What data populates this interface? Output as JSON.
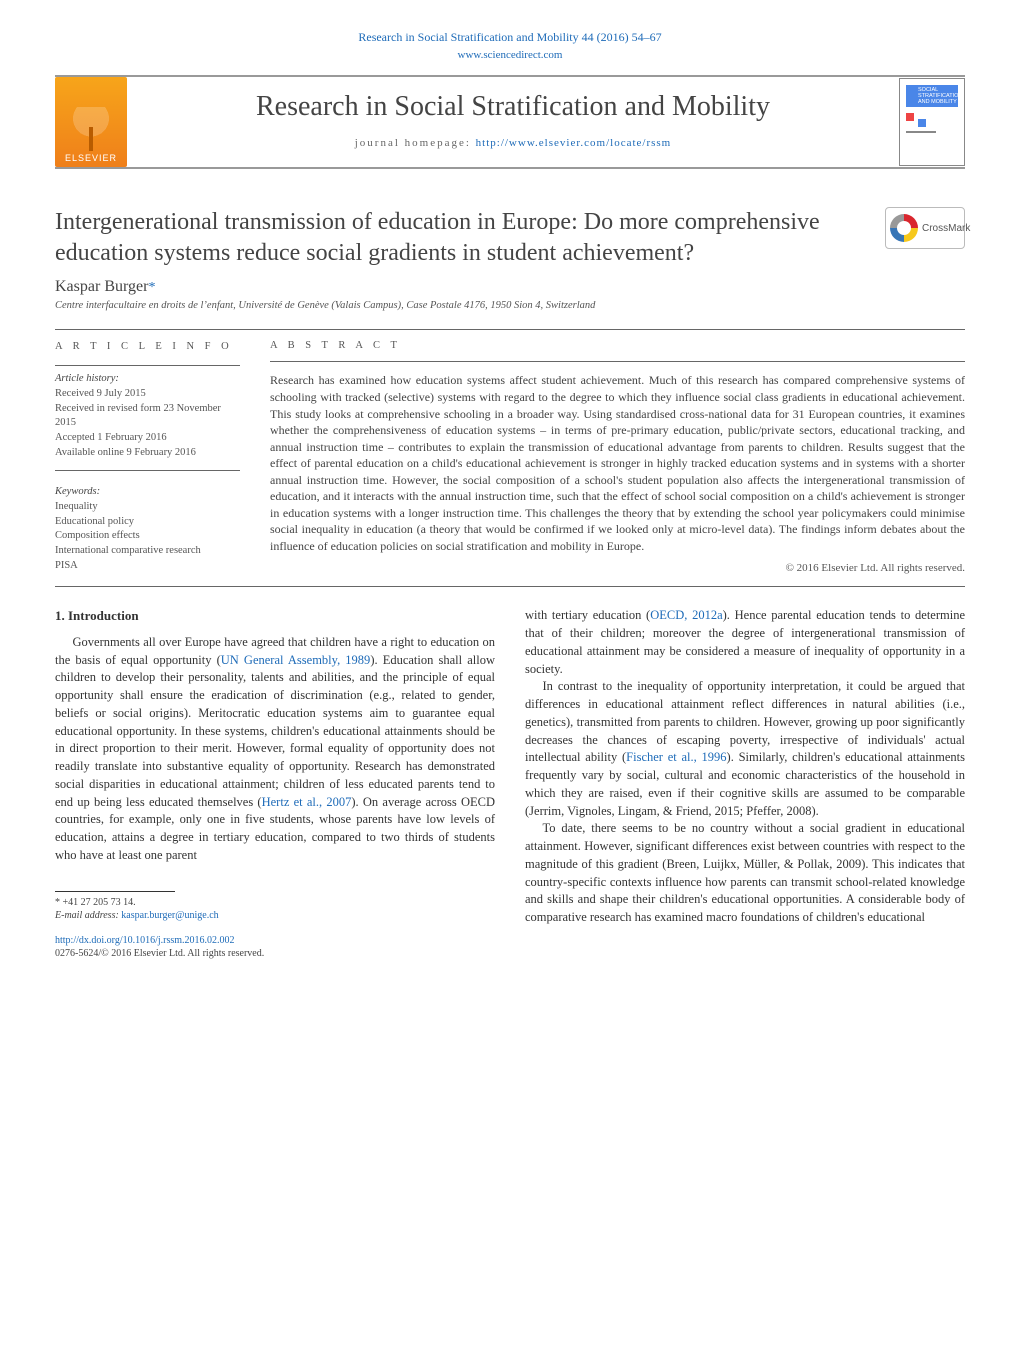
{
  "header": {
    "journal_ref_line": "Research in Social Stratification and Mobility 44 (2016) 54–67",
    "sciencedirect": "www.sciencedirect.com",
    "journal_title": "Research in Social Stratification and Mobility",
    "homepage_label": "journal homepage: ",
    "homepage_url": "http://www.elsevier.com/locate/rssm",
    "elsevier_label": "ELSEVIER",
    "cover_text": "SOCIAL\nSTRATIFICATION\nAND MOBILITY",
    "crossmark_label": "CrossMark"
  },
  "article": {
    "title": "Intergenerational transmission of education in Europe: Do more comprehensive education systems reduce social gradients in student achievement?",
    "author": "Kaspar Burger",
    "author_marker": "*",
    "affiliation": "Centre interfacultaire en droits de l’enfant, Université de Genève (Valais Campus), Case Postale 4176, 1950 Sion 4, Switzerland"
  },
  "article_info": {
    "heading": "A R T I C L E   I N F O",
    "history_label": "Article history:",
    "received": "Received 9 July 2015",
    "received_revised": "Received in revised form 23 November 2015",
    "accepted": "Accepted 1 February 2016",
    "online": "Available online 9 February 2016",
    "keywords_label": "Keywords:",
    "keywords": [
      "Inequality",
      "Educational policy",
      "Composition effects",
      "International comparative research",
      "PISA"
    ]
  },
  "abstract": {
    "heading": "A B S T R A C T",
    "text": "Research has examined how education systems affect student achievement. Much of this research has compared comprehensive systems of schooling with tracked (selective) systems with regard to the degree to which they influence social class gradients in educational achievement. This study looks at comprehensive schooling in a broader way. Using standardised cross-national data for 31 European countries, it examines whether the comprehensiveness of education systems – in terms of pre-primary education, public/private sectors, educational tracking, and annual instruction time – contributes to explain the transmission of educational advantage from parents to children. Results suggest that the effect of parental education on a child's educational achievement is stronger in highly tracked education systems and in systems with a shorter annual instruction time. However, the social composition of a school's student population also affects the intergenerational transmission of education, and it interacts with the annual instruction time, such that the effect of school social composition on a child's achievement is stronger in education systems with a longer instruction time. This challenges the theory that by extending the school year policymakers could minimise social inequality in education (a theory that would be confirmed if we looked only at micro-level data). The findings inform debates about the influence of education policies on social stratification and mobility in Europe.",
    "copyright": "© 2016 Elsevier Ltd. All rights reserved."
  },
  "body": {
    "section_number": "1.",
    "section_title": "Introduction",
    "col1_p1": "Governments all over Europe have agreed that children have a right to education on the basis of equal opportunity (UN General Assembly, 1989). Education shall allow children to develop their personality, talents and abilities, and the principle of equal opportunity shall ensure the eradication of discrimination (e.g., related to gender, beliefs or social origins). Meritocratic education systems aim to guarantee equal educational opportunity. In these systems, children's educational attainments should be in direct proportion to their merit. However, formal equality of opportunity does not readily translate into substantive equality of opportunity. Research has demonstrated social disparities in educational attainment; children of less educated parents tend to end up being less educated themselves (Hertz et al., 2007). On average across OECD countries, for example, only one in five students, whose parents have low levels of education, attains a degree in tertiary education, compared to two thirds of students who have at least one parent",
    "col2_p1": "with tertiary education (OECD, 2012a). Hence parental education tends to determine that of their children; moreover the degree of intergenerational transmission of educational attainment may be considered a measure of inequality of opportunity in a society.",
    "col2_p2": "In contrast to the inequality of opportunity interpretation, it could be argued that differences in educational attainment reflect differences in natural abilities (i.e., genetics), transmitted from parents to children. However, growing up poor significantly decreases the chances of escaping poverty, irrespective of individuals' actual intellectual ability (Fischer et al., 1996). Similarly, children's educational attainments frequently vary by social, cultural and economic characteristics of the household in which they are raised, even if their cognitive skills are assumed to be comparable (Jerrim, Vignoles, Lingam, & Friend, 2015; Pfeffer, 2008).",
    "col2_p3": "To date, there seems to be no country without a social gradient in educational attainment. However, significant differences exist between countries with respect to the magnitude of this gradient (Breen, Luijkx, Müller, & Pollak, 2009). This indicates that country-specific contexts influence how parents can transmit school-related knowledge and skills and shape their children's educational opportunities. A considerable body of comparative research has examined macro foundations of children's educational",
    "citations": {
      "un": "UN General Assembly, 1989",
      "hertz": "Hertz et al., 2007",
      "oecd": "OECD, 2012a",
      "fischer": "Fischer et al., 1996",
      "jerrim": "Jerrim, Vignoles, Lingam, & Friend, 2015; Pfeffer, 2008",
      "breen": "Breen, Luijkx, Müller, & Pollak, 2009"
    }
  },
  "footer": {
    "corr_marker": "*",
    "phone": "+41 27 205 73 14.",
    "email_label": "E-mail address: ",
    "email": "kaspar.burger@unige.ch",
    "doi": "http://dx.doi.org/10.1016/j.rssm.2016.02.002",
    "issn_copyright": "0276-5624/© 2016 Elsevier Ltd. All rights reserved."
  },
  "colors": {
    "link": "#1e6bb8",
    "text": "#444444",
    "muted": "#666666",
    "rule": "#666666",
    "elsevier_orange": "#ef7f1a"
  }
}
